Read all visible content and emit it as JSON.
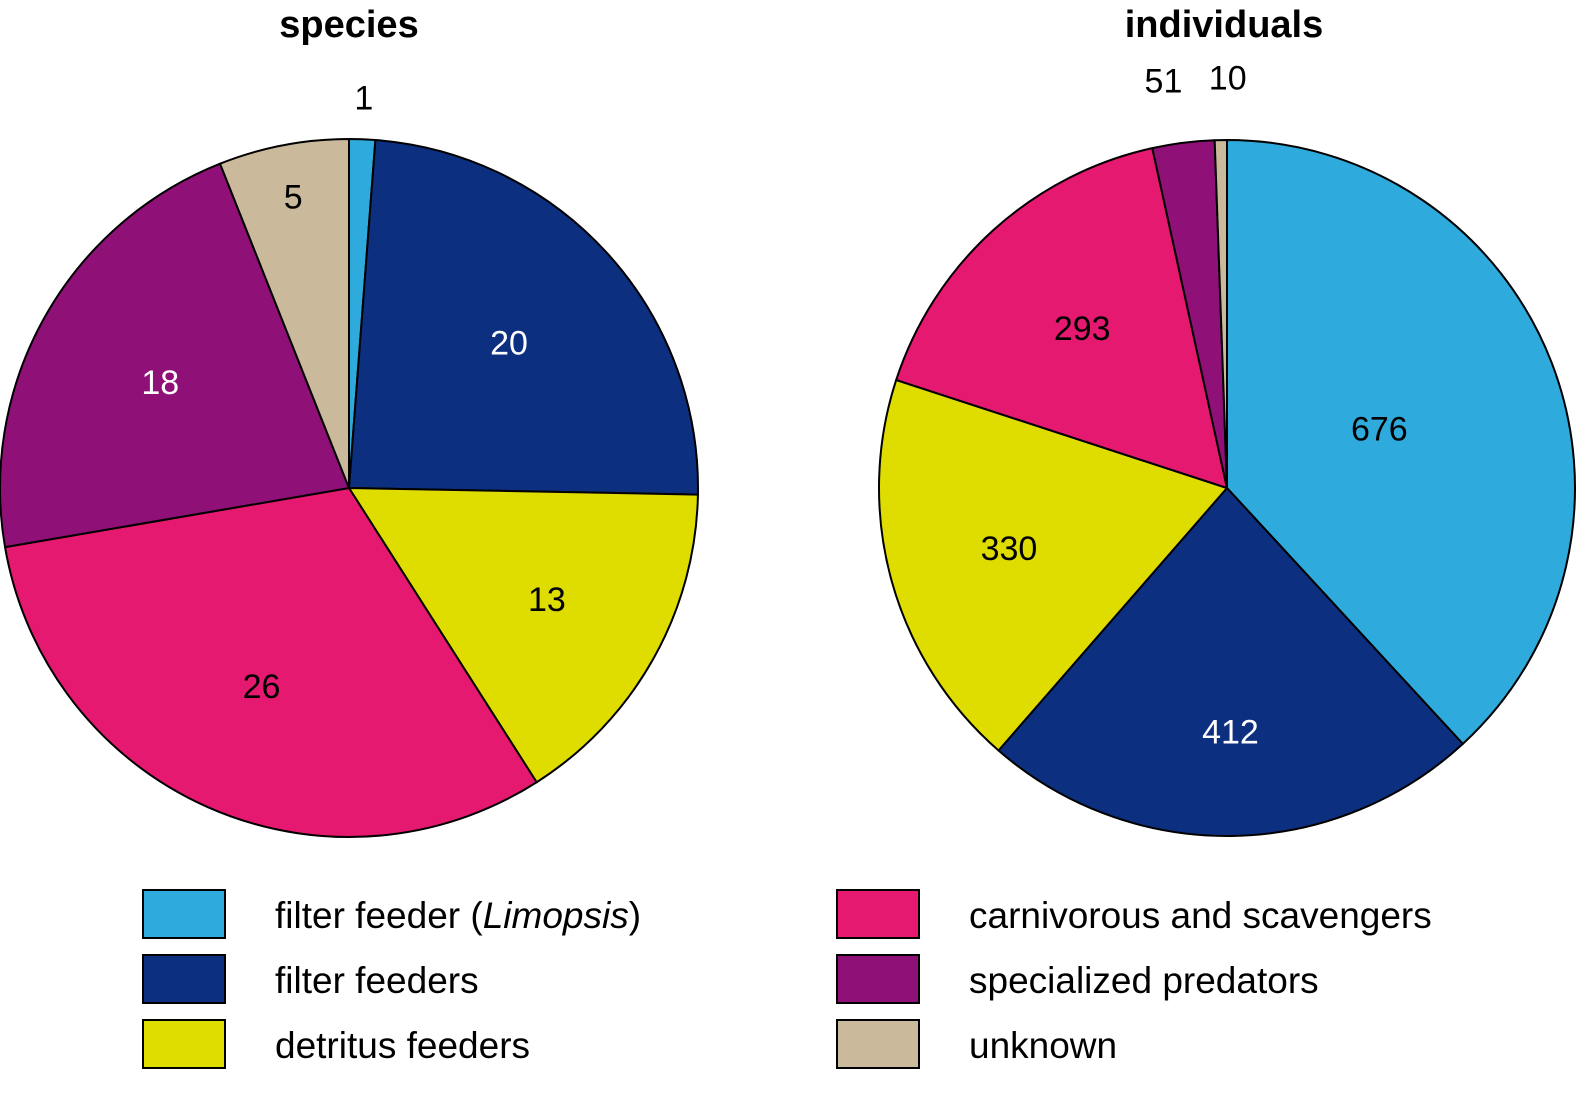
{
  "chart_data": [
    {
      "type": "pie",
      "title": "species",
      "slices": [
        {
          "label": "filter feeder (Limopsis)",
          "value": 1,
          "color": "#2eaadc",
          "text_color": "#000000"
        },
        {
          "label": "filter feeders",
          "value": 20,
          "color": "#0c2f80",
          "text_color": "#ffffff"
        },
        {
          "label": "detritus feeders",
          "value": 13,
          "color": "#dfdc00",
          "text_color": "#000000"
        },
        {
          "label": "carnivorous and scavengers",
          "value": 26,
          "color": "#e4196f",
          "text_color": "#000000"
        },
        {
          "label": "specialized predators",
          "value": 18,
          "color": "#8f1177",
          "text_color": "#ffffff"
        },
        {
          "label": "unknown",
          "value": 5,
          "color": "#cab99a",
          "text_color": "#000000"
        }
      ]
    },
    {
      "type": "pie",
      "title": "individuals",
      "slices": [
        {
          "label": "filter feeder (Limopsis)",
          "value": 676,
          "color": "#2eaadc",
          "text_color": "#000000"
        },
        {
          "label": "filter feeders",
          "value": 412,
          "color": "#0c2f80",
          "text_color": "#ffffff"
        },
        {
          "label": "detritus feeders",
          "value": 330,
          "color": "#dfdc00",
          "text_color": "#000000"
        },
        {
          "label": "carnivorous and scavengers",
          "value": 293,
          "color": "#e4196f",
          "text_color": "#000000"
        },
        {
          "label": "specialized predators",
          "value": 51,
          "color": "#8f1177",
          "text_color": "#000000"
        },
        {
          "label": "unknown",
          "value": 10,
          "color": "#cab99a",
          "text_color": "#000000"
        }
      ]
    }
  ],
  "legend": {
    "items": [
      {
        "prefix": "filter feeder (",
        "italic": "Limopsis",
        "suffix": ")",
        "color": "#2eaadc"
      },
      {
        "prefix": "filter feeders",
        "italic": "",
        "suffix": "",
        "color": "#0c2f80"
      },
      {
        "prefix": "detritus feeders",
        "italic": "",
        "suffix": "",
        "color": "#dfdc00"
      },
      {
        "prefix": "carnivorous and scavengers",
        "italic": "",
        "suffix": "",
        "color": "#e4196f"
      },
      {
        "prefix": "specialized predators",
        "italic": "",
        "suffix": "",
        "color": "#8f1177"
      },
      {
        "prefix": "unknown",
        "italic": "",
        "suffix": "",
        "color": "#cab99a"
      }
    ]
  }
}
